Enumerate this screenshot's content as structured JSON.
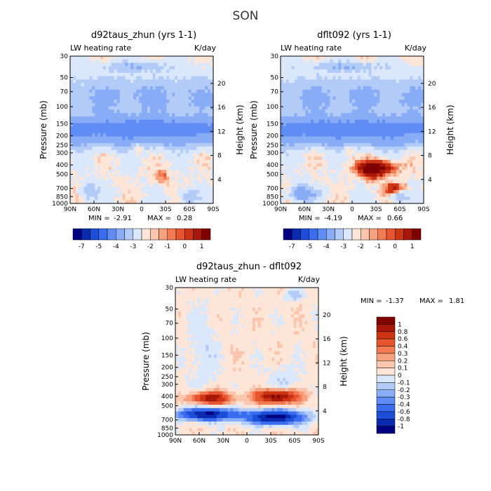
{
  "main_title": "SON",
  "colors": {
    "neg": [
      "#000080",
      "#0a2bb0",
      "#1b4ed9",
      "#3a6cf0",
      "#5f8cf5",
      "#88acf6",
      "#b3ccf7",
      "#dbe7fb"
    ],
    "pos": [
      "#fde6d8",
      "#fbc6ad",
      "#f7a27f",
      "#f27b54",
      "#e6552e",
      "#cc3514",
      "#a8180a",
      "#800000"
    ]
  },
  "chart_data": [
    {
      "type": "heatmap",
      "title": "d92taus_zhun (yrs 1-1)",
      "left_label": "LW heating rate",
      "right_label": "K/day",
      "ylabel": "Pressure (mb)",
      "y2label": "Height (km)",
      "x_ticks": [
        "90N",
        "60N",
        "30N",
        "0",
        "30S",
        "60S",
        "90S"
      ],
      "y_ticks": [
        "30",
        "50",
        "70",
        "100",
        "150",
        "200",
        "250",
        "300",
        "400",
        "500",
        "700",
        "850",
        "1000"
      ],
      "y2_ticks": [
        "20",
        "16",
        "12",
        "8",
        "4"
      ],
      "min_label": "MIN =",
      "min_value": "-2.91",
      "max_label": "MAX =",
      "max_value": "0.28",
      "cbar_ticks": [
        "-7",
        "-5",
        "-4",
        "-3",
        "-2",
        "-1",
        "0",
        "1"
      ],
      "field": "control"
    },
    {
      "type": "heatmap",
      "title": "dflt092 (yrs 1-1)",
      "left_label": "LW heating rate",
      "right_label": "K/day",
      "ylabel": "Pressure (mb)",
      "y2label": "Height (km)",
      "x_ticks": [
        "90N",
        "60N",
        "30N",
        "0",
        "30S",
        "60S",
        "90S"
      ],
      "y_ticks": [
        "30",
        "50",
        "70",
        "100",
        "150",
        "200",
        "250",
        "300",
        "400",
        "500",
        "700",
        "850",
        "1000"
      ],
      "y2_ticks": [
        "20",
        "16",
        "12",
        "8",
        "4"
      ],
      "min_label": "MIN =",
      "min_value": "-4.19",
      "max_label": "MAX =",
      "max_value": "0.66",
      "cbar_ticks": [
        "-7",
        "-5",
        "-4",
        "-3",
        "-2",
        "-1",
        "0",
        "1"
      ],
      "field": "default"
    },
    {
      "type": "heatmap",
      "title": "d92taus_zhun - dflt092",
      "left_label": "LW heating rate",
      "right_label": "K/day",
      "ylabel": "Pressure (mb)",
      "y2label": "Height (km)",
      "x_ticks": [
        "90N",
        "60N",
        "30N",
        "0",
        "30S",
        "60S",
        "90S"
      ],
      "y_ticks": [
        "30",
        "50",
        "70",
        "100",
        "150",
        "200",
        "250",
        "300",
        "400",
        "500",
        "700",
        "850",
        "1000"
      ],
      "y2_ticks": [
        "20",
        "16",
        "12",
        "8",
        "4"
      ],
      "min_label": "MIN =",
      "min_value": "-1.37",
      "max_label": "MAX =",
      "max_value": "1.81",
      "cbar_ticks": [
        "1",
        "0.8",
        "0.6",
        "0.4",
        "0.3",
        "0.2",
        "0.1",
        "0",
        "-0.1",
        "-0.2",
        "-0.3",
        "-0.4",
        "-0.6",
        "-0.8",
        "-1"
      ],
      "field": "difference"
    }
  ]
}
